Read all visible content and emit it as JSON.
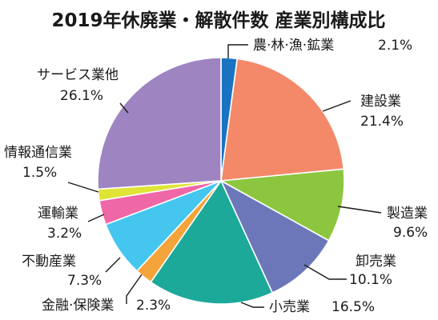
{
  "chart_data": {
    "type": "pie",
    "title": "2019年休廃業・解散件数 産業別構成比",
    "slices": [
      {
        "name": "農·林·漁·鉱業",
        "value": 2.1,
        "label": "2.1%",
        "color": "#1a73c1"
      },
      {
        "name": "建設業",
        "value": 21.4,
        "label": "21.4%",
        "color": "#f4896a"
      },
      {
        "name": "製造業",
        "value": 9.6,
        "label": "9.6%",
        "color": "#8cc63f"
      },
      {
        "name": "卸売業",
        "value": 10.1,
        "label": "10.1%",
        "color": "#6b77b9"
      },
      {
        "name": "小売業",
        "value": 16.5,
        "label": "16.5%",
        "color": "#1ca99a"
      },
      {
        "name": "金融·保険業",
        "value": 2.3,
        "label": "2.3%",
        "color": "#f5a43b"
      },
      {
        "name": "不動産業",
        "value": 7.3,
        "label": "7.3%",
        "color": "#44c6ef"
      },
      {
        "name": "運輸業",
        "value": 3.2,
        "label": "3.2%",
        "color": "#ef67a7"
      },
      {
        "name": "情報通信業",
        "value": 1.5,
        "label": "1.5%",
        "color": "#dfe436"
      },
      {
        "name": "サービス業他",
        "value": 26.1,
        "label": "26.1%",
        "color": "#9e84c1"
      }
    ]
  }
}
